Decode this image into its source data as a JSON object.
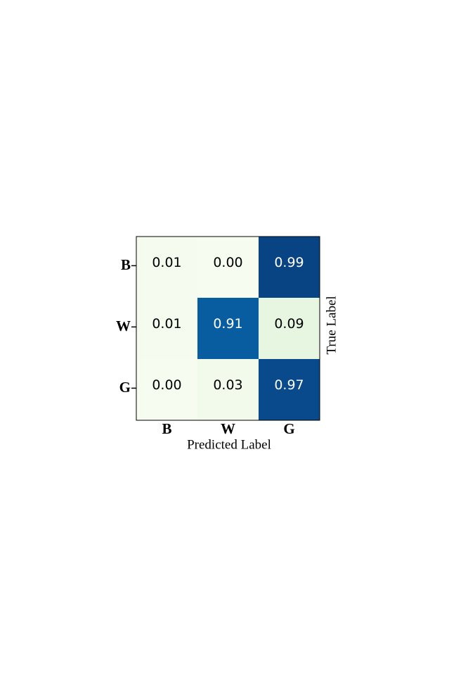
{
  "chart_data": {
    "type": "heatmap",
    "x_label": "Predicted Label",
    "y_label": "True Label",
    "x_categories": [
      "B",
      "W",
      "G"
    ],
    "y_categories": [
      "B",
      "W",
      "G"
    ],
    "values": [
      [
        0.01,
        0.0,
        0.99
      ],
      [
        0.01,
        0.91,
        0.09
      ],
      [
        0.0,
        0.03,
        0.97
      ]
    ],
    "value_labels": [
      [
        "0.01",
        "0.00",
        "0.99"
      ],
      [
        "0.01",
        "0.91",
        "0.09"
      ],
      [
        "0.00",
        "0.03",
        "0.97"
      ]
    ],
    "colormap": "GnBu"
  }
}
